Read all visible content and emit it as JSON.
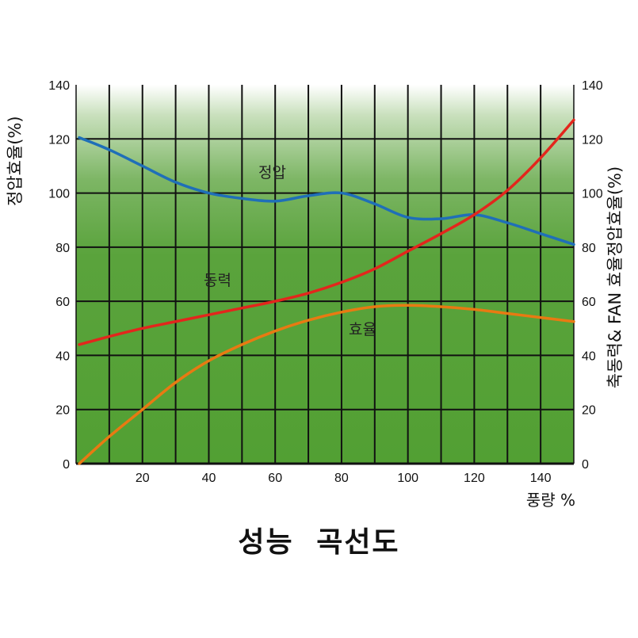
{
  "chart_data": {
    "type": "line",
    "title": "성능 곡선도",
    "xlabel": "풍량 %",
    "ylabel_left": "정압효율(%)",
    "ylabel_right": "축동력& FAN 효율정압효율(%)",
    "xlim": [
      0,
      150
    ],
    "ylim": [
      0,
      140
    ],
    "x_ticks": [
      "20",
      "40",
      "60",
      "80",
      "100",
      "120",
      "140"
    ],
    "y_ticks": [
      "0",
      "20",
      "40",
      "60",
      "80",
      "100",
      "120",
      "140"
    ],
    "grid": true,
    "series": [
      {
        "name": "정압",
        "color": "#1f6fb8",
        "x": [
          0,
          10,
          20,
          30,
          40,
          50,
          60,
          70,
          80,
          90,
          100,
          110,
          120,
          130,
          140,
          150
        ],
        "y": [
          120.5,
          116,
          110,
          104,
          100,
          98,
          97,
          99,
          100,
          96,
          91,
          90.5,
          92,
          89,
          85,
          81
        ]
      },
      {
        "name": "동력",
        "color": "#e3261c",
        "x": [
          0,
          10,
          20,
          30,
          40,
          50,
          60,
          70,
          80,
          90,
          100,
          110,
          120,
          130,
          140,
          150
        ],
        "y": [
          44,
          47,
          50,
          52.5,
          55,
          57.5,
          60,
          63,
          67,
          72,
          78.5,
          85,
          92,
          101,
          113,
          127
        ]
      },
      {
        "name": "효율",
        "color": "#e87a12",
        "x": [
          0,
          10,
          20,
          30,
          40,
          50,
          60,
          70,
          80,
          90,
          100,
          110,
          120,
          130,
          140,
          150
        ],
        "y": [
          0,
          10,
          20,
          30,
          38,
          44,
          49,
          53,
          56,
          58,
          58.5,
          58,
          57,
          55.5,
          54,
          52.5
        ]
      }
    ]
  }
}
